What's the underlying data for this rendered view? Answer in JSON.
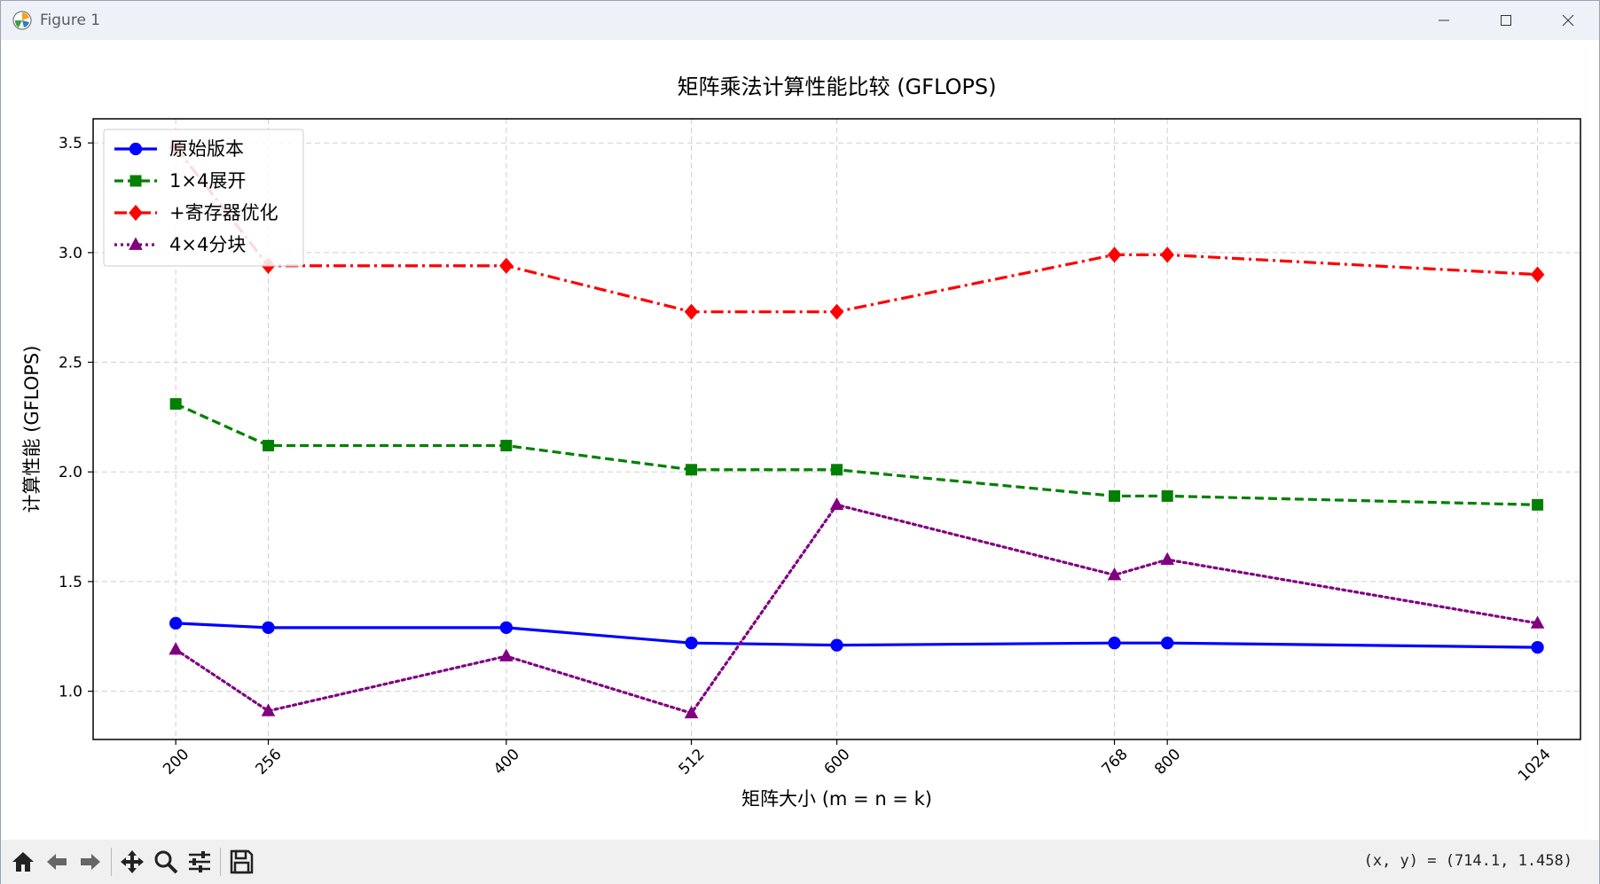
{
  "window": {
    "title": "Figure 1"
  },
  "toolbar": {
    "coords": "(x, y) = (714.1, 1.458)"
  },
  "chart_data": {
    "type": "line",
    "title": "矩阵乘法计算性能比较 (GFLOPS)",
    "xlabel": "矩阵大小 (m = n = k)",
    "ylabel": "计算性能 (GFLOPS)",
    "x": [
      200,
      256,
      400,
      512,
      600,
      768,
      800,
      1024
    ],
    "x_tick_labels": [
      "200",
      "256",
      "400",
      "512",
      "600",
      "768",
      "800",
      "1024"
    ],
    "xlim": [
      150,
      1050
    ],
    "ylim": [
      0.78,
      3.61
    ],
    "y_ticks": [
      1.0,
      1.5,
      2.0,
      2.5,
      3.0,
      3.5
    ],
    "y_tick_labels": [
      "1.0",
      "1.5",
      "2.0",
      "2.5",
      "3.0",
      "3.5"
    ],
    "grid": true,
    "legend_position": "upper-left",
    "series": [
      {
        "name": "原始版本",
        "color": "#0000ff",
        "dash": "solid",
        "marker": "circle",
        "values": [
          1.31,
          1.29,
          1.29,
          1.22,
          1.21,
          1.22,
          1.22,
          1.2
        ]
      },
      {
        "name": "1×4展开",
        "color": "#008000",
        "dash": "dashed",
        "marker": "square",
        "values": [
          2.31,
          2.12,
          2.12,
          2.01,
          2.01,
          1.89,
          1.89,
          1.85
        ]
      },
      {
        "name": "+寄存器优化",
        "color": "#ff0000",
        "dash": "dashdot",
        "marker": "diamond",
        "values": [
          3.48,
          2.94,
          2.94,
          2.73,
          2.73,
          2.99,
          2.99,
          2.9
        ]
      },
      {
        "name": "4×4分块",
        "color": "#800080",
        "dash": "dotted",
        "marker": "triangle",
        "values": [
          1.19,
          0.91,
          1.16,
          0.9,
          1.85,
          1.53,
          1.6,
          1.31
        ]
      }
    ]
  }
}
